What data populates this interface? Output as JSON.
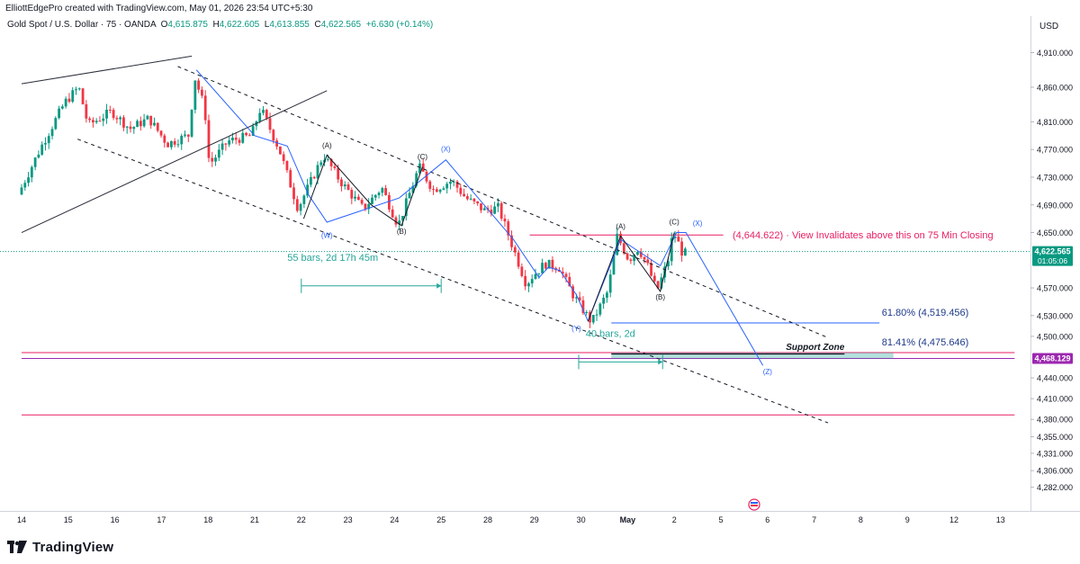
{
  "header": {
    "caption": "ElliottEdgePro created with TradingView.com, May 01, 2026 23:54 UTC+5:30",
    "symbol": "Gold Spot / U.S. Dollar · 75 · OANDA",
    "open_label": "O",
    "open": "4,615.875",
    "high_label": "H",
    "high": "4,622.605",
    "low_label": "L",
    "low": "4,613.855",
    "close_label": "C",
    "close": "4,622.565",
    "change": "+6.630 (+0.14%)",
    "currency": "USD"
  },
  "brand": {
    "name": "TradingView",
    "icon": "tradingview-logo-icon"
  },
  "colors": {
    "up": "#089981",
    "down": "#f23645",
    "blue": "#2962ff",
    "pink": "#e91e63",
    "teal": "#26a69a",
    "purple": "#9c27b0"
  },
  "chart_data": {
    "type": "candlestick",
    "x_axis_labels": [
      "14",
      "15",
      "16",
      "17",
      "18",
      "21",
      "22",
      "23",
      "24",
      "25",
      "28",
      "29",
      "30",
      "May",
      "2",
      "5",
      "6",
      "7",
      "8",
      "9",
      "12",
      "13"
    ],
    "y_axis_labels": [
      "4,910.000",
      "4,860.000",
      "4,810.000",
      "4,770.000",
      "4,730.000",
      "4,690.000",
      "4,650.000",
      "4,570.000",
      "4,530.000",
      "4,500.000",
      "4,440.000",
      "4,410.000",
      "4,380.000",
      "4,355.000",
      "4,331.000",
      "4,306.000",
      "4,282.000"
    ],
    "ylim": [
      4270,
      4940
    ],
    "price_tags": [
      {
        "value": "4,622.565",
        "sub": "01:05:06",
        "color": "#089981",
        "price": 4622.565
      },
      {
        "value": "4,468.129",
        "sub": "",
        "color": "#9c27b0",
        "price": 4468.129
      }
    ],
    "path_anchors": [
      {
        "d": 0.0,
        "p": 4705
      },
      {
        "d": 0.5,
        "p": 4775
      },
      {
        "d": 1.0,
        "p": 4838
      },
      {
        "d": 1.3,
        "p": 4860
      },
      {
        "d": 1.5,
        "p": 4805
      },
      {
        "d": 2.0,
        "p": 4825
      },
      {
        "d": 2.4,
        "p": 4800
      },
      {
        "d": 2.8,
        "p": 4815
      },
      {
        "d": 3.2,
        "p": 4778
      },
      {
        "d": 3.7,
        "p": 4792
      },
      {
        "d": 3.75,
        "p": 4882
      },
      {
        "d": 4.0,
        "p": 4830
      },
      {
        "d": 4.1,
        "p": 4748
      },
      {
        "d": 4.5,
        "p": 4782
      },
      {
        "d": 5.0,
        "p": 4790
      },
      {
        "d": 5.2,
        "p": 4830
      },
      {
        "d": 5.6,
        "p": 4770
      },
      {
        "d": 6.0,
        "p": 4685
      },
      {
        "d": 6.55,
        "p": 4762
      },
      {
        "d": 6.9,
        "p": 4725
      },
      {
        "d": 7.4,
        "p": 4684
      },
      {
        "d": 7.8,
        "p": 4715
      },
      {
        "d": 8.15,
        "p": 4660
      },
      {
        "d": 8.6,
        "p": 4745
      },
      {
        "d": 8.9,
        "p": 4712
      },
      {
        "d": 9.3,
        "p": 4725
      },
      {
        "d": 9.6,
        "p": 4700
      },
      {
        "d": 10.0,
        "p": 4682
      },
      {
        "d": 10.3,
        "p": 4686
      },
      {
        "d": 10.55,
        "p": 4640
      },
      {
        "d": 10.9,
        "p": 4575
      },
      {
        "d": 11.0,
        "p": 4585
      },
      {
        "d": 11.3,
        "p": 4605
      },
      {
        "d": 11.6,
        "p": 4600
      },
      {
        "d": 11.9,
        "p": 4560
      },
      {
        "d": 12.3,
        "p": 4520
      },
      {
        "d": 12.65,
        "p": 4565
      },
      {
        "d": 12.85,
        "p": 4645
      },
      {
        "d": 13.1,
        "p": 4610
      },
      {
        "d": 13.3,
        "p": 4628
      },
      {
        "d": 13.5,
        "p": 4602
      },
      {
        "d": 13.7,
        "p": 4565
      },
      {
        "d": 13.95,
        "p": 4612
      },
      {
        "d": 14.05,
        "p": 4652
      },
      {
        "d": 14.25,
        "p": 4620
      }
    ],
    "trendlines": [
      {
        "type": "solid",
        "color": "#2a2e39",
        "points": [
          [
            0.0,
            4865
          ],
          [
            3.65,
            4905
          ]
        ]
      },
      {
        "type": "solid",
        "color": "#2a2e39",
        "points": [
          [
            0.0,
            4650
          ],
          [
            6.55,
            4855
          ]
        ]
      },
      {
        "type": "dashed",
        "color": "#131722",
        "points": [
          [
            3.35,
            4890
          ],
          [
            17.3,
            4498
          ]
        ]
      },
      {
        "type": "dashed",
        "color": "#131722",
        "points": [
          [
            1.2,
            4785
          ],
          [
            17.3,
            4375
          ]
        ]
      }
    ],
    "wave_paths": [
      {
        "color": "#2962ff",
        "points": [
          [
            3.75,
            4885
          ],
          [
            5.0,
            4790
          ],
          [
            5.7,
            4775
          ],
          [
            6.15,
            4705
          ],
          [
            6.55,
            4665
          ],
          [
            8.1,
            4700
          ],
          [
            9.1,
            4755
          ],
          [
            10.55,
            4640
          ],
          [
            11.1,
            4585
          ],
          [
            11.3,
            4600
          ],
          [
            11.55,
            4595
          ],
          [
            11.9,
            4560
          ],
          [
            12.15,
            4522
          ],
          [
            12.85,
            4640
          ],
          [
            13.7,
            4602
          ],
          [
            14.05,
            4650
          ],
          [
            14.25,
            4650
          ],
          [
            15.9,
            4458
          ]
        ]
      },
      {
        "color": "#131722",
        "points": [
          [
            6.05,
            4670
          ],
          [
            6.55,
            4762
          ],
          [
            7.5,
            4690
          ],
          [
            8.15,
            4660
          ],
          [
            8.6,
            4745
          ]
        ]
      },
      {
        "color": "#131722",
        "points": [
          [
            12.15,
            4522
          ],
          [
            12.85,
            4645
          ],
          [
            13.7,
            4565
          ],
          [
            14.0,
            4650
          ]
        ]
      }
    ],
    "wave_labels": [
      {
        "text": "(A)",
        "d": 6.55,
        "p": 4772,
        "color": "#131722"
      },
      {
        "text": "(W)",
        "d": 6.55,
        "p": 4642,
        "color": "#2962ff"
      },
      {
        "text": "(B)",
        "d": 8.15,
        "p": 4648,
        "color": "#131722"
      },
      {
        "text": "(C)",
        "d": 8.6,
        "p": 4756,
        "color": "#131722"
      },
      {
        "text": "(X)",
        "d": 9.1,
        "p": 4767,
        "color": "#2962ff"
      },
      {
        "text": "(Y)",
        "d": 11.9,
        "p": 4508,
        "color": "#2962ff"
      },
      {
        "text": "(A)",
        "d": 12.85,
        "p": 4655,
        "color": "#131722"
      },
      {
        "text": "(B)",
        "d": 13.7,
        "p": 4553,
        "color": "#131722"
      },
      {
        "text": "(C)",
        "d": 14.0,
        "p": 4662,
        "color": "#131722"
      },
      {
        "text": "(X)",
        "d": 14.5,
        "p": 4660,
        "color": "#2962ff"
      },
      {
        "text": "(Z)",
        "d": 16.0,
        "p": 4445,
        "color": "#2962ff"
      }
    ],
    "horizontal_levels": [
      {
        "price": 4646.5,
        "color": "#e91e63",
        "from": 10.9,
        "to": 15.05,
        "width": 1
      },
      {
        "price": 4519.456,
        "color": "#2962ff",
        "from": 12.65,
        "to": 18.4,
        "width": 1
      },
      {
        "price": 4476.5,
        "color": "#e91e63",
        "from": 0.0,
        "to": 21.3,
        "width": 1
      },
      {
        "price": 4468.129,
        "color": "#9c27b0",
        "from": 0.0,
        "to": 21.3,
        "width": 1
      },
      {
        "price": 4386.5,
        "color": "#e91e63",
        "from": 0.0,
        "to": 21.3,
        "width": 1
      }
    ],
    "support_zone": {
      "label": "Support Zone",
      "from": 12.65,
      "to": 18.7,
      "top": 4476.5,
      "bottom": 4468.0
    },
    "fib_labels": [
      {
        "text": "61.80% (4,519.456)",
        "d": 18.45,
        "p": 4530
      },
      {
        "text": "81.41% (4,475.646)",
        "d": 18.45,
        "p": 4487
      }
    ],
    "invalidation": {
      "text": "(4,644.622) · View Invalidates above this on 75 Min Closing",
      "d": 15.25,
      "p": 4646.5
    },
    "measures": [
      {
        "text": "55 bars, 2d 17h 45m",
        "label_d": 5.7,
        "label_p": 4609,
        "from": 6.0,
        "to": 9.0,
        "p": 4573
      },
      {
        "text": "40 bars, 2d",
        "label_d": 12.1,
        "label_p": 4499,
        "from": 11.95,
        "to": 13.75,
        "p": 4463
      }
    ],
    "price_line": 4622.565
  }
}
